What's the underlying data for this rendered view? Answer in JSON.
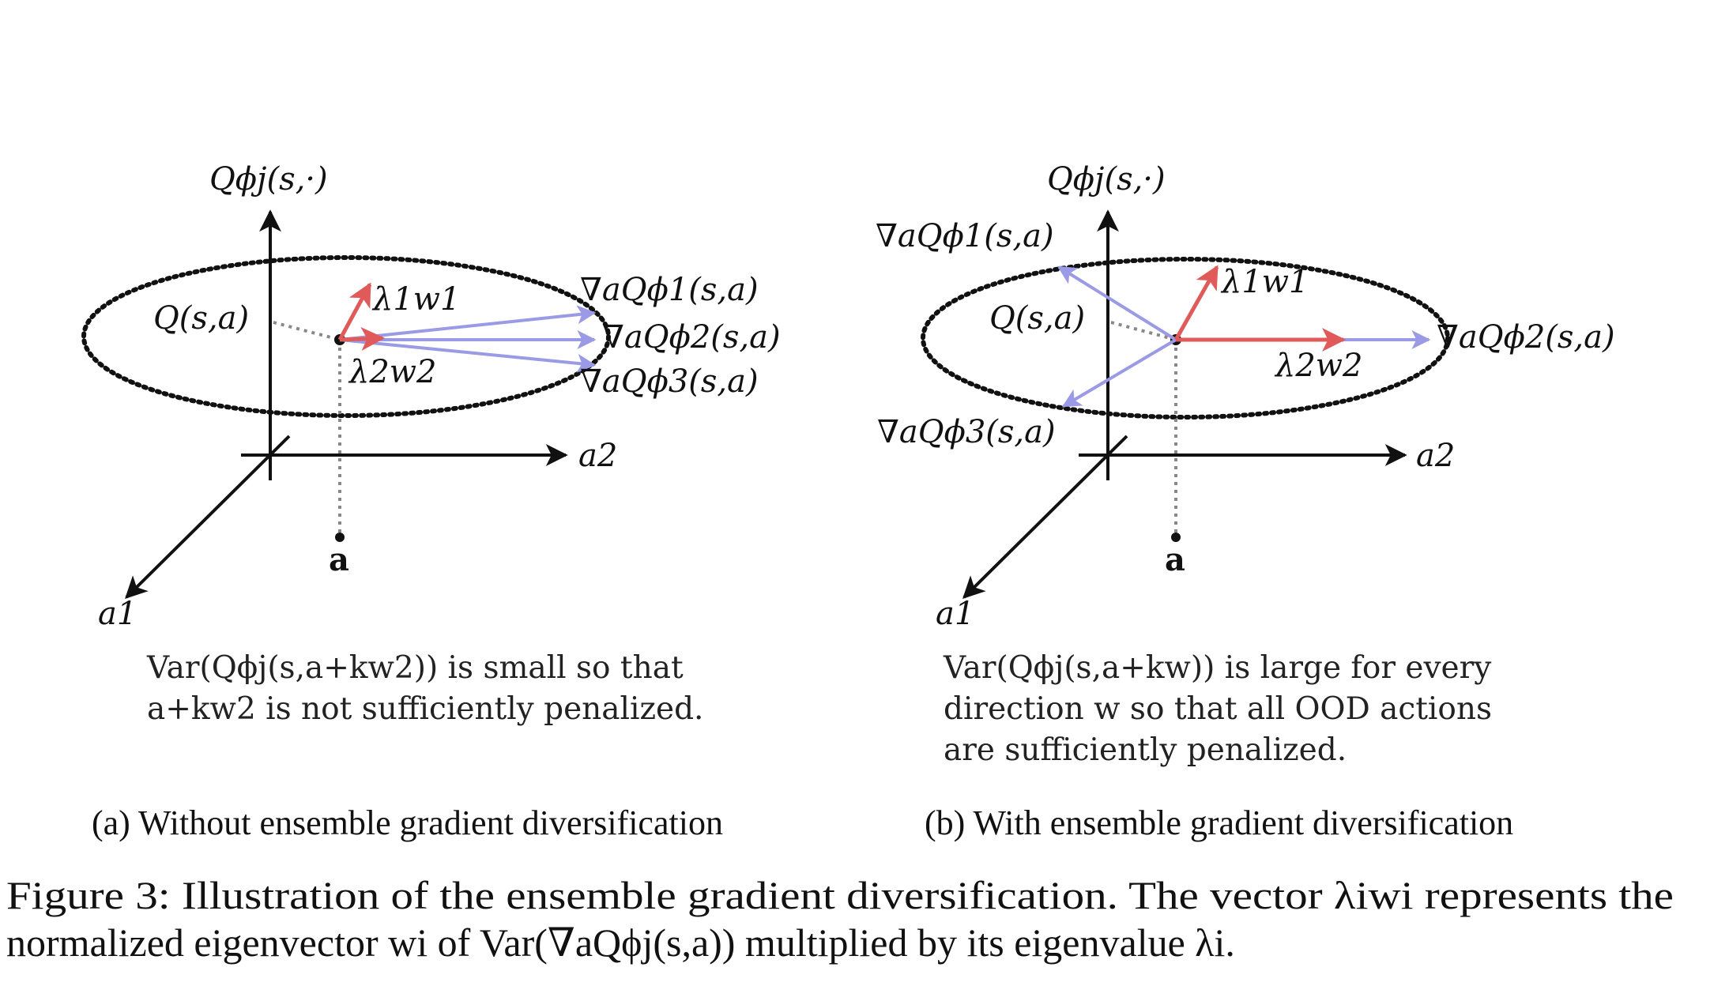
{
  "colors": {
    "axis": "#111111",
    "red_arrow": "#e05a5a",
    "blue_arrow": "#9a9ae6",
    "dotted_ellipse": "#111111",
    "dotted_guide": "#888888"
  },
  "panel_a": {
    "y_axis_label": "Qϕj(s,·)",
    "x2_axis_label": "a2",
    "x1_axis_label": "a1",
    "q_label": "Q(s,a)",
    "point_label": "a",
    "lambda1_label": "λ1w1",
    "lambda2_label": "λ2w2",
    "grad1_label": "∇aQϕ1(s,a)",
    "grad2_label": "∇aQϕ2(s,a)",
    "grad3_label": "∇aQϕ3(s,a)",
    "description_line1": "Var(Qϕj(s,a+kw2)) is small so that",
    "description_line2": "a+kw2 is not sufficiently penalized.",
    "subcaption": "(a) Without ensemble gradient diversification"
  },
  "panel_b": {
    "y_axis_label": "Qϕj(s,·)",
    "x2_axis_label": "a2",
    "x1_axis_label": "a1",
    "q_label": "Q(s,a)",
    "point_label": "a",
    "lambda1_label": "λ1w1",
    "lambda2_label": "λ2w2",
    "grad1_label": "∇aQϕ1(s,a)",
    "grad2_label": "∇aQϕ2(s,a)",
    "grad3_label": "∇aQϕ3(s,a)",
    "description_line1": "Var(Qϕj(s,a+kw)) is large for every",
    "description_line2": "direction w so that all OOD actions",
    "description_line3": "are sufficiently penalized.",
    "subcaption": "(b) With ensemble gradient diversification"
  },
  "caption": {
    "line1": "Figure 3: Illustration of the ensemble gradient diversification. The vector λiwi represents the",
    "line2": "normalized eigenvector wi of Var(∇aQϕj(s,a)) multiplied by its eigenvalue λi."
  }
}
